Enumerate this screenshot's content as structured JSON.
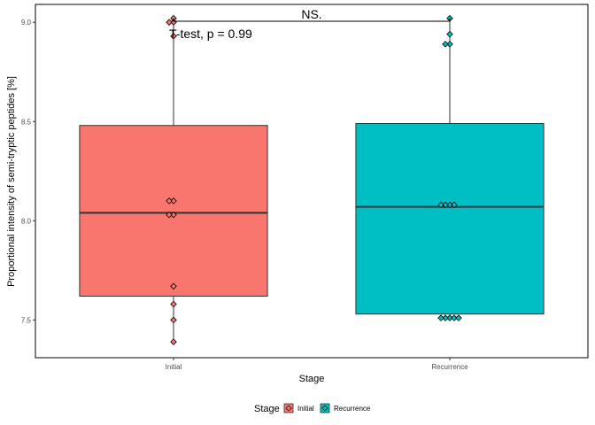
{
  "chart_data": {
    "type": "boxplot",
    "xlabel": "Stage",
    "ylabel": "Proportional intensity of semi-tryptic peptides [%]",
    "ylim": [
      7.31,
      9.09
    ],
    "yticks": [
      "7.5",
      "8.0",
      "8.5",
      "9.0"
    ],
    "categories": [
      "Initial",
      "Recurrence"
    ],
    "groups": [
      {
        "name": "Initial",
        "color": "#F8766D",
        "min": 7.39,
        "q1": 7.62,
        "median": 8.04,
        "q3": 8.48,
        "max": 9.02,
        "points": [
          9.02,
          9.0,
          9.0,
          8.93,
          8.1,
          8.1,
          8.03,
          8.03,
          7.67,
          7.58,
          7.5,
          7.39
        ]
      },
      {
        "name": "Recurrence",
        "color": "#00BFC4",
        "min": 7.51,
        "q1": 7.53,
        "median": 8.07,
        "q3": 8.49,
        "max": 9.02,
        "points": [
          9.02,
          8.94,
          8.89,
          8.89,
          8.08,
          8.08,
          8.08,
          8.08,
          7.51,
          7.51,
          7.51,
          7.51,
          7.51
        ]
      }
    ],
    "annotations": {
      "comparison": "NS.",
      "test": "T-test, p = 0.99"
    },
    "legend": {
      "title": "Stage",
      "position": "bottom",
      "items": [
        "Initial",
        "Recurrence"
      ]
    },
    "grid": false
  }
}
